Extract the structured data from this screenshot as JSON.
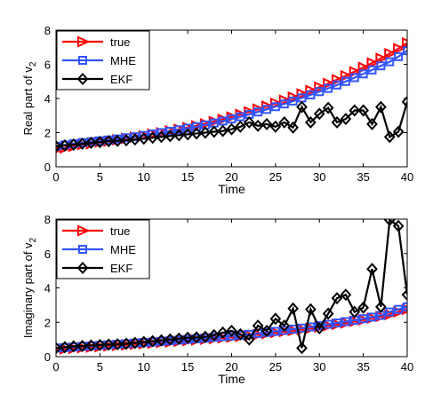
{
  "chart_data": [
    {
      "type": "line",
      "title": "",
      "xlabel": "Time",
      "ylabel": "Real part of v",
      "ylabel_sub": "2",
      "xlim": [
        0,
        40
      ],
      "ylim": [
        0,
        8
      ],
      "xticks": [
        "0",
        "5",
        "10",
        "15",
        "20",
        "25",
        "30",
        "35",
        "40"
      ],
      "yticks": [
        "0",
        "2",
        "4",
        "6",
        "8"
      ],
      "legend_position": "top-left",
      "x": [
        0,
        1,
        2,
        3,
        4,
        5,
        6,
        7,
        8,
        9,
        10,
        11,
        12,
        13,
        14,
        15,
        16,
        17,
        18,
        19,
        20,
        21,
        22,
        23,
        24,
        25,
        26,
        27,
        28,
        29,
        30,
        31,
        32,
        33,
        34,
        35,
        36,
        37,
        38,
        39,
        40
      ],
      "series": [
        {
          "name": "true",
          "color": "#ff0000",
          "marker": "triangle-right",
          "values": [
            1.0,
            1.1,
            1.2,
            1.3,
            1.35,
            1.45,
            1.5,
            1.58,
            1.66,
            1.74,
            1.82,
            1.92,
            2.0,
            2.1,
            2.2,
            2.3,
            2.4,
            2.52,
            2.65,
            2.78,
            2.92,
            3.07,
            3.22,
            3.38,
            3.55,
            3.72,
            3.9,
            4.08,
            4.27,
            4.47,
            4.67,
            4.88,
            5.1,
            5.33,
            5.57,
            5.82,
            6.08,
            6.35,
            6.63,
            6.92,
            7.25
          ]
        },
        {
          "name": "MHE",
          "color": "#3355ff",
          "marker": "square",
          "values": [
            1.2,
            1.28,
            1.35,
            1.42,
            1.47,
            1.52,
            1.57,
            1.63,
            1.7,
            1.76,
            1.84,
            1.92,
            2.0,
            2.08,
            2.17,
            2.26,
            2.35,
            2.45,
            2.56,
            2.68,
            2.8,
            2.93,
            3.07,
            3.21,
            3.36,
            3.52,
            3.68,
            3.85,
            4.03,
            4.21,
            4.4,
            4.59,
            4.79,
            5.0,
            5.22,
            5.44,
            5.67,
            5.91,
            6.15,
            6.45,
            6.8
          ]
        },
        {
          "name": "EKF",
          "color": "#000000",
          "marker": "diamond",
          "values": [
            1.2,
            1.25,
            1.3,
            1.35,
            1.4,
            1.45,
            1.5,
            1.52,
            1.55,
            1.6,
            1.65,
            1.7,
            1.75,
            1.8,
            1.85,
            1.9,
            1.95,
            2.0,
            2.05,
            2.1,
            2.2,
            2.35,
            2.6,
            2.4,
            2.5,
            2.35,
            2.6,
            2.3,
            3.5,
            2.6,
            3.1,
            3.45,
            2.6,
            2.8,
            3.3,
            3.3,
            2.5,
            3.5,
            1.75,
            2.05,
            3.8
          ]
        }
      ]
    },
    {
      "type": "line",
      "title": "",
      "xlabel": "Time",
      "ylabel": "Imaginary part of v",
      "ylabel_sub": "2",
      "xlim": [
        0,
        40
      ],
      "ylim": [
        0,
        8
      ],
      "xticks": [
        "0",
        "5",
        "10",
        "15",
        "20",
        "25",
        "30",
        "35",
        "40"
      ],
      "yticks": [
        "0",
        "2",
        "4",
        "6",
        "8"
      ],
      "legend_position": "top-left",
      "x": [
        0,
        1,
        2,
        3,
        4,
        5,
        6,
        7,
        8,
        9,
        10,
        11,
        12,
        13,
        14,
        15,
        16,
        17,
        18,
        19,
        20,
        21,
        22,
        23,
        24,
        25,
        26,
        27,
        28,
        29,
        30,
        31,
        32,
        33,
        34,
        35,
        36,
        37,
        38,
        39,
        40
      ],
      "series": [
        {
          "name": "true",
          "color": "#ff0000",
          "marker": "triangle-right",
          "values": [
            0.4,
            0.45,
            0.48,
            0.52,
            0.55,
            0.58,
            0.62,
            0.65,
            0.68,
            0.72,
            0.75,
            0.78,
            0.82,
            0.85,
            0.89,
            0.93,
            0.97,
            1.01,
            1.05,
            1.09,
            1.13,
            1.18,
            1.23,
            1.28,
            1.34,
            1.4,
            1.46,
            1.52,
            1.58,
            1.65,
            1.72,
            1.8,
            1.88,
            1.96,
            2.05,
            2.14,
            2.24,
            2.34,
            2.45,
            2.6,
            2.75
          ]
        },
        {
          "name": "MHE",
          "color": "#3355ff",
          "marker": "square",
          "values": [
            0.5,
            0.53,
            0.56,
            0.6,
            0.62,
            0.66,
            0.69,
            0.72,
            0.75,
            0.79,
            0.82,
            0.85,
            0.89,
            0.92,
            0.96,
            1.0,
            1.04,
            1.08,
            1.12,
            1.16,
            1.2,
            1.25,
            1.3,
            1.35,
            1.41,
            1.47,
            1.53,
            1.6,
            1.66,
            1.73,
            1.8,
            1.88,
            1.96,
            2.04,
            2.12,
            2.21,
            2.3,
            2.4,
            2.6,
            2.75,
            2.9
          ]
        },
        {
          "name": "EKF",
          "color": "#000000",
          "marker": "diamond",
          "values": [
            0.5,
            0.55,
            0.6,
            0.62,
            0.65,
            0.68,
            0.7,
            0.72,
            0.75,
            0.8,
            0.85,
            0.9,
            0.95,
            1.0,
            1.05,
            1.1,
            1.12,
            1.15,
            1.25,
            1.4,
            1.5,
            1.3,
            1.0,
            1.8,
            1.5,
            2.2,
            1.8,
            2.8,
            0.5,
            2.75,
            1.65,
            2.5,
            3.4,
            3.6,
            2.6,
            2.85,
            5.1,
            2.9,
            7.95,
            7.6,
            3.6
          ]
        }
      ]
    }
  ]
}
